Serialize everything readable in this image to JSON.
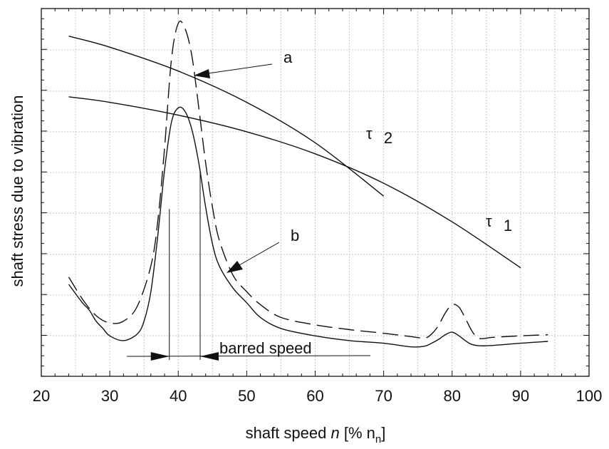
{
  "chart_data": {
    "type": "line",
    "title": "",
    "xlabel": {
      "pre": "shaft speed ",
      "italic": "n",
      "mid": " [% n",
      "sub": "n",
      "post": "]"
    },
    "ylabel": "shaft stress due to vibration",
    "xlim": [
      20,
      100
    ],
    "ylim": [
      0,
      10
    ],
    "x_ticks": [
      "20",
      "30",
      "40",
      "50",
      "60",
      "70",
      "80",
      "90",
      "100"
    ],
    "y_tick_labels_shown": false,
    "grid": true,
    "series": [
      {
        "name": "a",
        "style": "dashed",
        "x": [
          24,
          26,
          28,
          30,
          32,
          34,
          36,
          37,
          38,
          39,
          40,
          41,
          42,
          43,
          44,
          45,
          46,
          48,
          50,
          52,
          55,
          60,
          65,
          70,
          74,
          76,
          77,
          78,
          79,
          80,
          81,
          82,
          83,
          84,
          86,
          90,
          94
        ],
        "y": [
          2.7,
          2.1,
          1.65,
          1.45,
          1.5,
          1.9,
          3.0,
          4.2,
          6.2,
          8.6,
          9.6,
          9.45,
          8.7,
          7.3,
          5.8,
          4.6,
          3.7,
          2.75,
          2.3,
          1.95,
          1.6,
          1.4,
          1.27,
          1.17,
          1.08,
          1.04,
          1.15,
          1.38,
          1.72,
          1.95,
          1.88,
          1.55,
          1.2,
          1.03,
          1.06,
          1.1,
          1.13
        ]
      },
      {
        "name": "b",
        "style": "solid",
        "x": [
          24,
          26,
          27,
          28,
          29,
          30,
          32,
          34,
          35,
          36,
          37,
          38,
          39,
          40,
          41,
          42,
          43,
          44,
          45,
          46,
          48,
          50,
          52,
          55,
          60,
          65,
          70,
          74,
          76,
          77,
          78,
          79,
          80,
          81,
          82,
          83,
          85,
          90,
          94
        ],
        "y": [
          2.5,
          2.0,
          1.8,
          1.5,
          1.3,
          1.1,
          0.97,
          1.15,
          1.5,
          2.3,
          3.8,
          5.6,
          6.9,
          7.3,
          7.2,
          6.7,
          5.8,
          4.6,
          3.6,
          3.0,
          2.4,
          2.0,
          1.6,
          1.3,
          1.1,
          0.97,
          0.9,
          0.8,
          0.82,
          0.9,
          1.0,
          1.13,
          1.2,
          1.1,
          0.96,
          0.86,
          0.83,
          0.9,
          0.95
        ]
      },
      {
        "name": "τ 2",
        "style": "solid",
        "x": [
          24,
          30,
          40,
          50,
          60,
          70
        ],
        "y": [
          9.25,
          8.95,
          8.3,
          7.45,
          6.35,
          4.9
        ]
      },
      {
        "name": "τ 1",
        "style": "solid",
        "x": [
          24,
          30,
          40,
          50,
          60,
          70,
          80,
          90
        ],
        "y": [
          7.6,
          7.45,
          7.1,
          6.65,
          6.05,
          5.25,
          4.2,
          2.95
        ]
      }
    ],
    "annotations": {
      "label_a": "a",
      "label_b": "b",
      "tau2": {
        "sym": "τ",
        "sub": "2"
      },
      "tau1": {
        "sym": "τ",
        "sub": "1"
      },
      "barred_speed": "barred speed",
      "barred_range": [
        38.7,
        43.2
      ]
    }
  }
}
